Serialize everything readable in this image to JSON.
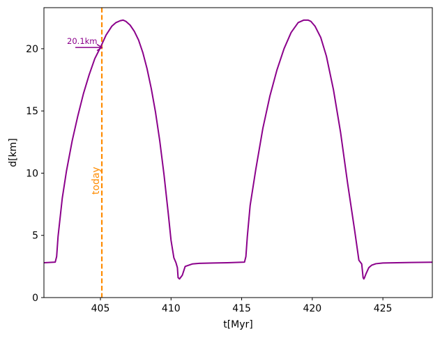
{
  "chart_data": {
    "type": "line",
    "xlabel": "t[Myr]",
    "ylabel": "d[km]",
    "xlim": [
      401.0,
      428.5
    ],
    "ylim": [
      0,
      23.3
    ],
    "xticks": [
      405,
      410,
      415,
      420,
      425
    ],
    "yticks": [
      0,
      5,
      10,
      15,
      20
    ],
    "grid": false,
    "colors": {
      "series": "#8b008b",
      "today": "#ff8c00"
    },
    "series": [
      {
        "x": [
          401.0,
          401.8,
          401.9,
          402.0,
          402.3,
          402.6,
          403.0,
          403.4,
          403.8,
          404.2,
          404.6,
          405.0,
          405.4,
          405.8,
          406.1,
          406.4,
          406.6,
          406.8,
          407.1,
          407.4,
          407.7,
          408.0,
          408.3,
          408.6,
          408.9,
          409.2,
          409.5,
          409.8,
          410.0,
          410.2,
          410.35,
          410.45,
          410.5,
          410.6,
          410.8,
          411.0,
          411.5,
          412.0,
          413.0,
          414.0,
          415.2,
          415.3,
          415.4,
          415.6,
          416.0,
          416.5,
          417.0,
          417.5,
          418.0,
          418.5,
          419.0,
          419.4,
          419.7,
          419.9,
          420.2,
          420.6,
          421.0,
          421.5,
          422.0,
          422.5,
          423.0,
          423.3,
          423.5,
          423.6,
          423.65,
          423.7,
          423.8,
          424.0,
          424.2,
          424.5,
          425.0,
          426.0,
          427.0,
          428.5
        ],
        "y": [
          2.8,
          2.85,
          3.3,
          4.9,
          8.0,
          10.2,
          12.6,
          14.6,
          16.4,
          17.9,
          19.2,
          20.1,
          21.1,
          21.8,
          22.1,
          22.25,
          22.3,
          22.2,
          21.9,
          21.4,
          20.7,
          19.7,
          18.4,
          16.8,
          14.9,
          12.6,
          9.9,
          6.8,
          4.6,
          3.2,
          2.8,
          2.4,
          1.6,
          1.5,
          1.8,
          2.5,
          2.7,
          2.75,
          2.78,
          2.8,
          2.85,
          3.3,
          4.9,
          7.4,
          10.3,
          13.6,
          16.2,
          18.3,
          20.0,
          21.3,
          22.1,
          22.3,
          22.3,
          22.2,
          21.8,
          20.9,
          19.4,
          16.7,
          13.3,
          9.2,
          5.4,
          3.0,
          2.7,
          1.6,
          1.5,
          1.6,
          1.9,
          2.4,
          2.6,
          2.72,
          2.78,
          2.8,
          2.82,
          2.84
        ]
      }
    ],
    "today_x": 405.1,
    "today_label": "today",
    "annotation": {
      "text": "20.1km",
      "x": 405.1,
      "y": 20.1
    }
  }
}
